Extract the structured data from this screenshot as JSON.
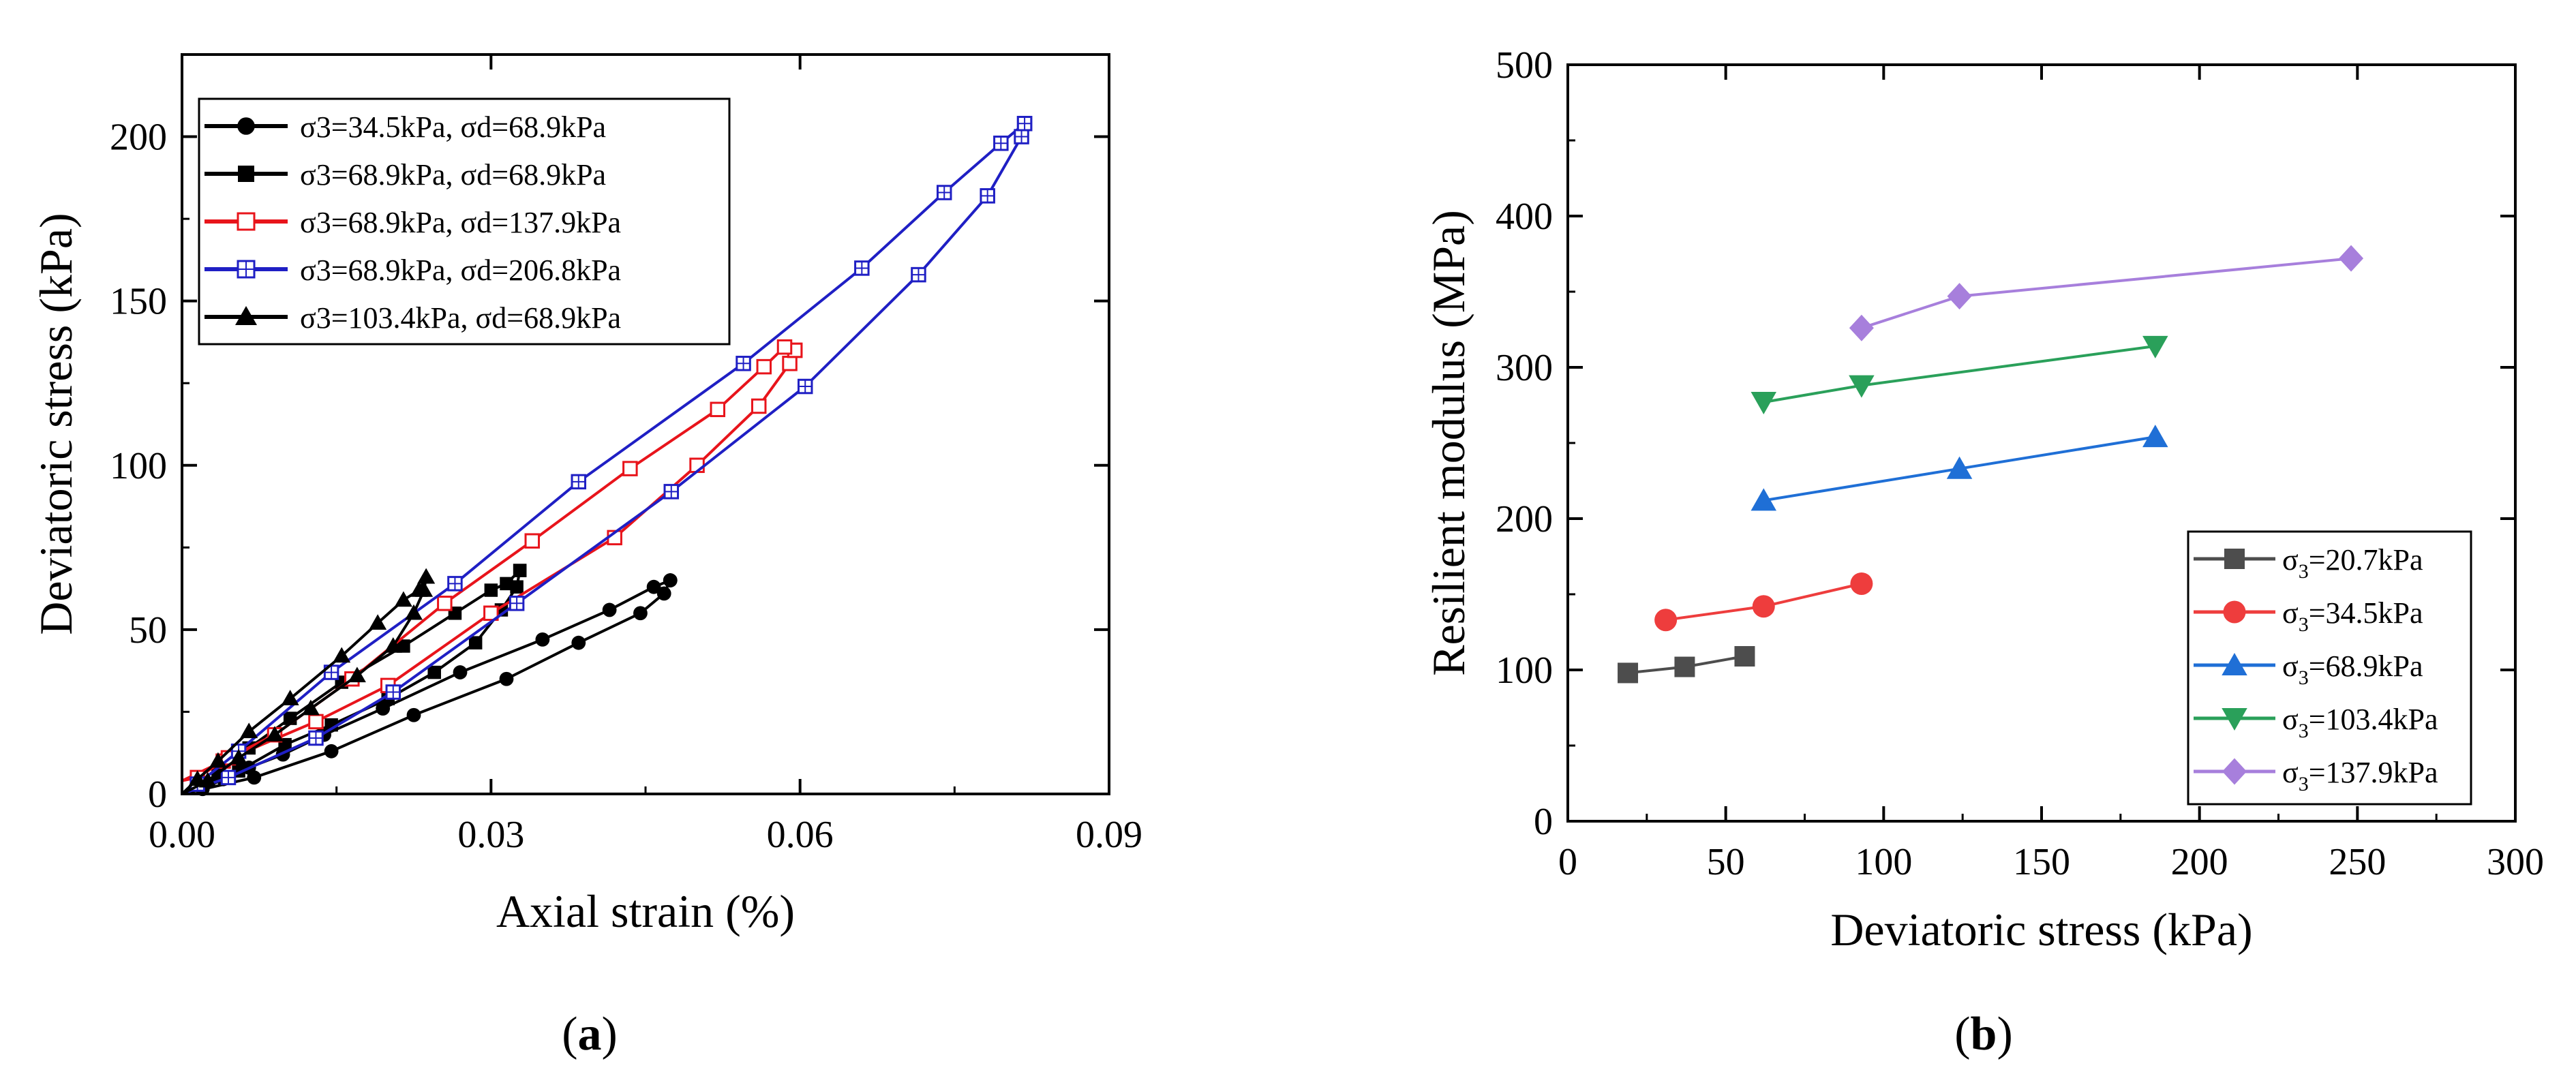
{
  "chart_data": [
    {
      "type": "line",
      "panel_label": {
        "open": "(",
        "letter": "a",
        "close": ")"
      },
      "xlabel": "Axial strain (%)",
      "ylabel": "Deviatoric stress (kPa)",
      "xlim": [
        0,
        0.09
      ],
      "ylim": [
        0,
        225
      ],
      "xticks": [
        0.0,
        0.03,
        0.06,
        0.09
      ],
      "xtick_labels": [
        "0.00",
        "0.03",
        "0.06",
        "0.09"
      ],
      "yticks": [
        0,
        50,
        100,
        150,
        200
      ],
      "ytick_labels": [
        "0",
        "50",
        "100",
        "150",
        "200"
      ],
      "legend_position": "top-left",
      "series": [
        {
          "name": "σ3=34.5kPa,  σd=68.9kPa",
          "color": "#000000",
          "marker": "circle-filled",
          "loading": [
            [
              0,
              0
            ],
            [
              0.007,
              5
            ],
            [
              0.0145,
              13
            ],
            [
              0.0225,
              24
            ],
            [
              0.0315,
              35
            ],
            [
              0.0385,
              46
            ],
            [
              0.0445,
              55
            ],
            [
              0.0468,
              61
            ],
            [
              0.0474,
              65
            ]
          ],
          "unloading": [
            [
              0.0474,
              65
            ],
            [
              0.0458,
              63
            ],
            [
              0.0415,
              56
            ],
            [
              0.035,
              47
            ],
            [
              0.027,
              37
            ],
            [
              0.0195,
              26
            ],
            [
              0.0138,
              18
            ],
            [
              0.0098,
              12
            ],
            [
              0.0065,
              8
            ],
            [
              0.004,
              4.5
            ],
            [
              0.002,
              1.5
            ],
            [
              0,
              0
            ]
          ]
        },
        {
          "name": "σ3=68.9kPa,  σd=68.9kPa",
          "color": "#000000",
          "marker": "square-filled",
          "loading": [
            [
              0,
              0
            ],
            [
              0.0055,
              7
            ],
            [
              0.01,
              15
            ],
            [
              0.0145,
              21
            ],
            [
              0.02,
              29
            ],
            [
              0.0245,
              37
            ],
            [
              0.0285,
              46
            ],
            [
              0.031,
              56
            ],
            [
              0.0325,
              63
            ],
            [
              0.0328,
              68
            ]
          ],
          "unloading": [
            [
              0.0328,
              68
            ],
            [
              0.0315,
              64
            ],
            [
              0.03,
              62
            ],
            [
              0.0265,
              55
            ],
            [
              0.0215,
              45
            ],
            [
              0.0155,
              34
            ],
            [
              0.0105,
              23
            ],
            [
              0.0065,
              14
            ],
            [
              0.0035,
              6
            ],
            [
              0.0015,
              2.5
            ],
            [
              0,
              0
            ]
          ]
        },
        {
          "name": "σ3=68.9kPa,  σd=137.9kPa",
          "color": "#e8141b",
          "marker": "square-open",
          "loading": [
            [
              0.0,
              4
            ],
            [
              0.004,
              10
            ],
            [
              0.013,
              22
            ],
            [
              0.02,
              33
            ],
            [
              0.03,
              55
            ],
            [
              0.042,
              78
            ],
            [
              0.05,
              100
            ],
            [
              0.056,
              118
            ],
            [
              0.059,
              131
            ],
            [
              0.0595,
              135
            ]
          ],
          "unloading": [
            [
              0.0595,
              135
            ],
            [
              0.0585,
              136
            ],
            [
              0.0565,
              130
            ],
            [
              0.052,
              117
            ],
            [
              0.0435,
              99
            ],
            [
              0.034,
              77
            ],
            [
              0.0255,
              58
            ],
            [
              0.0165,
              35
            ],
            [
              0.009,
              18
            ],
            [
              0.0045,
              11
            ],
            [
              0.0015,
              5
            ],
            [
              0.0,
              4
            ]
          ]
        },
        {
          "name": "σ3=68.9kPa,  σd=206.8kPa",
          "color": "#1f1fc4",
          "marker": "square-cross",
          "loading": [
            [
              0,
              0
            ],
            [
              0.0045,
              5
            ],
            [
              0.013,
              17
            ],
            [
              0.0205,
              31
            ],
            [
              0.0325,
              58
            ],
            [
              0.0475,
              92
            ],
            [
              0.0605,
              124
            ],
            [
              0.0715,
              158
            ],
            [
              0.0782,
              182
            ],
            [
              0.0815,
              200
            ],
            [
              0.0818,
              204
            ]
          ],
          "unloading": [
            [
              0.0818,
              204
            ],
            [
              0.0795,
              198
            ],
            [
              0.074,
              183
            ],
            [
              0.066,
              160
            ],
            [
              0.0545,
              131
            ],
            [
              0.0385,
              95
            ],
            [
              0.0265,
              64
            ],
            [
              0.0145,
              37
            ],
            [
              0.0055,
              13
            ],
            [
              0.0015,
              3
            ],
            [
              0,
              0
            ]
          ]
        },
        {
          "name": "σ3=103.4kPa, σd=68.9kPa",
          "color": "#000000",
          "marker": "triangle-filled",
          "loading": [
            [
              0,
              0
            ],
            [
              0.0025,
              4
            ],
            [
              0.0055,
              11
            ],
            [
              0.009,
              18
            ],
            [
              0.0125,
              26
            ],
            [
              0.017,
              36
            ],
            [
              0.0205,
              45
            ],
            [
              0.0225,
              55
            ],
            [
              0.0235,
              62
            ],
            [
              0.0237,
              66
            ]
          ],
          "unloading": [
            [
              0.0237,
              66
            ],
            [
              0.023,
              62
            ],
            [
              0.0215,
              59
            ],
            [
              0.019,
              52
            ],
            [
              0.0155,
              42
            ],
            [
              0.0105,
              29
            ],
            [
              0.0065,
              19
            ],
            [
              0.0035,
              10
            ],
            [
              0.0015,
              4.5
            ],
            [
              0,
              0
            ]
          ]
        }
      ]
    },
    {
      "type": "line",
      "panel_label": {
        "open": "(",
        "letter": "b",
        "close": ")"
      },
      "xlabel": "Deviatoric stress (kPa)",
      "ylabel": "Resilient modulus (MPa)",
      "xlim": [
        0,
        300
      ],
      "ylim": [
        0,
        500
      ],
      "xticks": [
        0,
        50,
        100,
        150,
        200,
        250,
        300
      ],
      "xtick_labels": [
        "0",
        "50",
        "100",
        "150",
        "200",
        "250",
        "300"
      ],
      "yticks": [
        0,
        100,
        200,
        300,
        400,
        500
      ],
      "ytick_labels": [
        "0",
        "100",
        "200",
        "300",
        "400",
        "500"
      ],
      "legend_position": "bottom-right",
      "series": [
        {
          "sym": "σ",
          "sub": "3",
          "rest": "=20.7kPa",
          "color": "#4d4d4d",
          "marker": "square",
          "x": [
            19,
            37,
            56
          ],
          "y": [
            98,
            102,
            109
          ]
        },
        {
          "sym": "σ",
          "sub": "3",
          "rest": "=34.5kPa",
          "color": "#ee3d3d",
          "marker": "circle",
          "x": [
            31,
            62,
            93
          ],
          "y": [
            133,
            142,
            157
          ]
        },
        {
          "sym": "σ",
          "sub": "3",
          "rest": "=68.9kPa",
          "color": "#1f6fd6",
          "marker": "triangle-up",
          "x": [
            62,
            124,
            186
          ],
          "y": [
            212,
            233,
            254
          ]
        },
        {
          "sym": "σ",
          "sub": "3",
          "rest": "=103.4kPa",
          "color": "#2aa05a",
          "marker": "triangle-down",
          "x": [
            62,
            93,
            186
          ],
          "y": [
            277,
            288,
            314
          ]
        },
        {
          "sym": "σ",
          "sub": "3",
          "rest": "=137.9kPa",
          "color": "#a77fdc",
          "marker": "diamond",
          "x": [
            93,
            124,
            248
          ],
          "y": [
            326,
            347,
            372
          ]
        }
      ]
    }
  ]
}
